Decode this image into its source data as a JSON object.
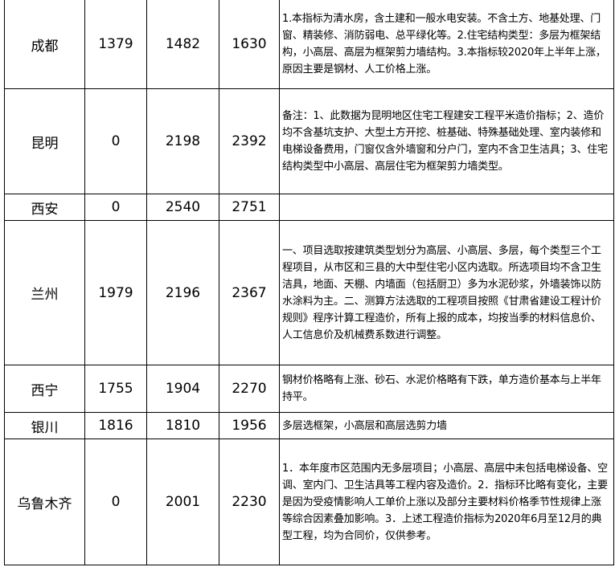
{
  "rows": [
    {
      "city": "成都",
      "v1": "1379",
      "v2": "1482",
      "v3": "1630",
      "note": "1.本指标为清水房，含土建和一般水电安装。不含土方、地基处理、门窗、精装修、消防弱电、总平绿化等。2.住宅结构类型：多层为框架结构，小高层、高层为框架剪力墙结构。3.本指标较2020年上半年上涨，原因主要是钢材、人工价格上涨。"
    },
    {
      "city": "昆明",
      "v1": "0",
      "v2": "2198",
      "v3": "2392",
      "note": "备注：1、此数据为昆明地区住宅工程建安工程平米造价指标；2、造价均不含基坑支护、大型土方开挖、桩基础、特殊基础处理、室内装修和电梯设备费用，门窗仅含外墙窗和分户门，室内不含卫生洁具；3、住宅结构类型中小高层、高层住宅为框架剪力墙类型。"
    },
    {
      "city": "西安",
      "v1": "0",
      "v2": "2540",
      "v3": "2751",
      "note": ""
    },
    {
      "city": "兰州",
      "v1": "1979",
      "v2": "2196",
      "v3": "2367",
      "note": "一、项目选取按建筑类型划分为高层、小高层、多层，每个类型三个工程项目，从市区和三县的大中型住宅小区内选取。所选项目均不含卫生洁具，地面、天棚、内墙面（包括厨卫）多为水泥砂浆，外墙装饰以防水涂料为主。二、测算方法选取的工程项目按照《甘肃省建设工程计价规则》程序计算工程造价，所有上报的成本，均按当季的材料信息价、人工信息价及机械费系数进行调整。"
    },
    {
      "city": "西宁",
      "v1": "1755",
      "v2": "1904",
      "v3": "2270",
      "note": "钢材价格略有上涨、砂石、水泥价格略有下跌，单方造价基本与上半年持平。"
    },
    {
      "city": "银川",
      "v1": "1816",
      "v2": "1810",
      "v3": "1956",
      "note": "多层选框架，小高层和高层选剪力墙"
    },
    {
      "city": "乌鲁木齐",
      "v1": "0",
      "v2": "2001",
      "v3": "2230",
      "note": "1．本年度市区范围内无多层项目；小高层、高层中未包括电梯设备、空调、室内门、卫生洁具等工程内容及造价。2．指标环比略有变化，主要是因为受疫情影响人工单价上涨以及部分主要材料价格季节性规律上涨等综合因素叠加影响。3．上述工程造价指标为2020年6月至12月的典型工程，均为合同价，仅供参考。"
    }
  ]
}
